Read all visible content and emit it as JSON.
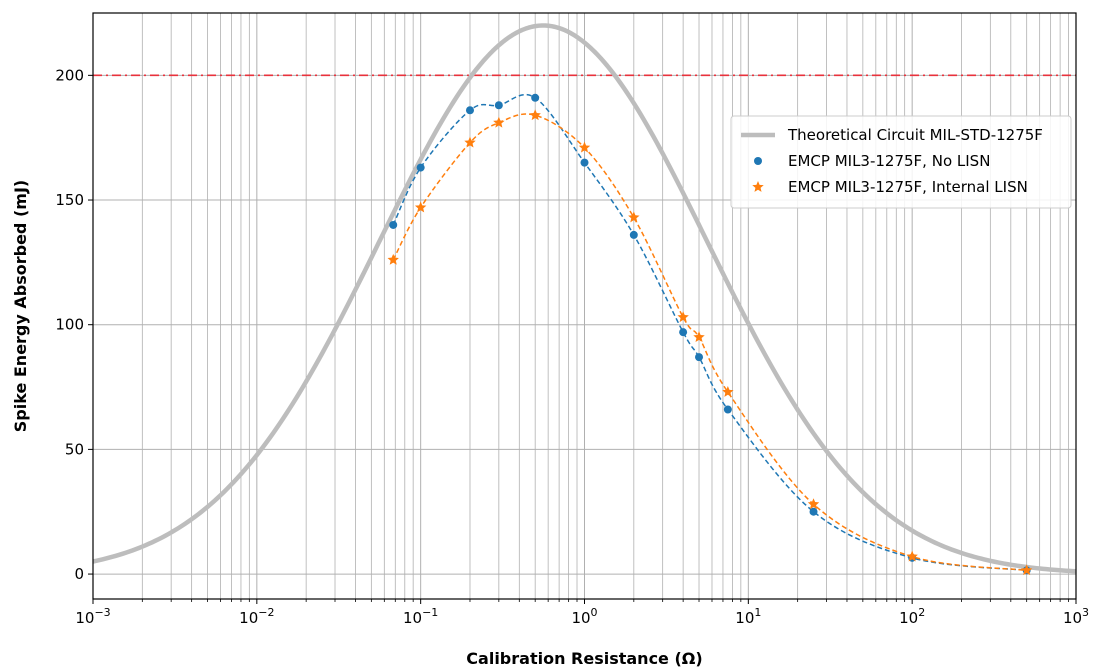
{
  "chart_data": {
    "type": "line",
    "title": "",
    "xlabel": "Calibration Resistance (Ω)",
    "ylabel": "Spike Energy Absorbed (mJ)",
    "xscale": "log",
    "xlim": [
      0.001,
      1000
    ],
    "ylim": [
      -10,
      225
    ],
    "grid": true,
    "grid_which": "both",
    "legend_position": "center-right",
    "x_tick_labels": [
      {
        "value": 0.001,
        "base": "10",
        "exp": "−3"
      },
      {
        "value": 0.01,
        "base": "10",
        "exp": "−2"
      },
      {
        "value": 0.1,
        "base": "10",
        "exp": "−1"
      },
      {
        "value": 1,
        "base": "10",
        "exp": "0"
      },
      {
        "value": 10,
        "base": "10",
        "exp": "1"
      },
      {
        "value": 100,
        "base": "10",
        "exp": "2"
      },
      {
        "value": 1000,
        "base": "10",
        "exp": "3"
      }
    ],
    "y_ticks": [
      0,
      50,
      100,
      150,
      200
    ],
    "reference_line": {
      "y": 200,
      "color": "#e8323c",
      "style": "dashdot"
    },
    "series": [
      {
        "name": "Theoretical Circuit MIL-STD-1275F",
        "kind": "curve",
        "color": "#bdbdbd",
        "peak_x": 0.56,
        "peak_y": 220,
        "x": [
          0.001,
          0.002,
          0.005,
          0.01,
          0.02,
          0.05,
          0.1,
          0.2,
          0.5,
          0.56,
          1,
          2,
          5,
          10,
          20,
          50,
          100,
          200,
          500,
          1000
        ],
        "y": [
          5.9,
          11.3,
          24.9,
          43.5,
          71.7,
          122.2,
          162.1,
          198.2,
          219.6,
          220,
          211.5,
          180.1,
          122.5,
          84.1,
          52.6,
          24.0,
          12.8,
          6.7,
          2.7,
          1.4
        ]
      },
      {
        "name": "EMCP MIL3-1275F, No LISN",
        "kind": "markers-dashed",
        "marker": "circle",
        "color": "#1f77b4",
        "x": [
          0.068,
          0.1,
          0.2,
          0.3,
          0.5,
          1.0,
          2.0,
          4.0,
          5.0,
          7.5,
          25,
          100,
          500
        ],
        "y": [
          140,
          163,
          186,
          188,
          191,
          165,
          136,
          97,
          87,
          66,
          25,
          6.5,
          1.5
        ]
      },
      {
        "name": "EMCP MIL3-1275F, Internal LISN",
        "kind": "markers-dashed",
        "marker": "star",
        "color": "#ff7f0e",
        "x": [
          0.068,
          0.1,
          0.2,
          0.3,
          0.5,
          1.0,
          2.0,
          4.0,
          5.0,
          7.5,
          25,
          100,
          500
        ],
        "y": [
          126,
          147,
          173,
          181,
          184,
          171,
          143,
          103,
          95,
          73,
          28,
          7,
          1.5
        ]
      }
    ]
  }
}
